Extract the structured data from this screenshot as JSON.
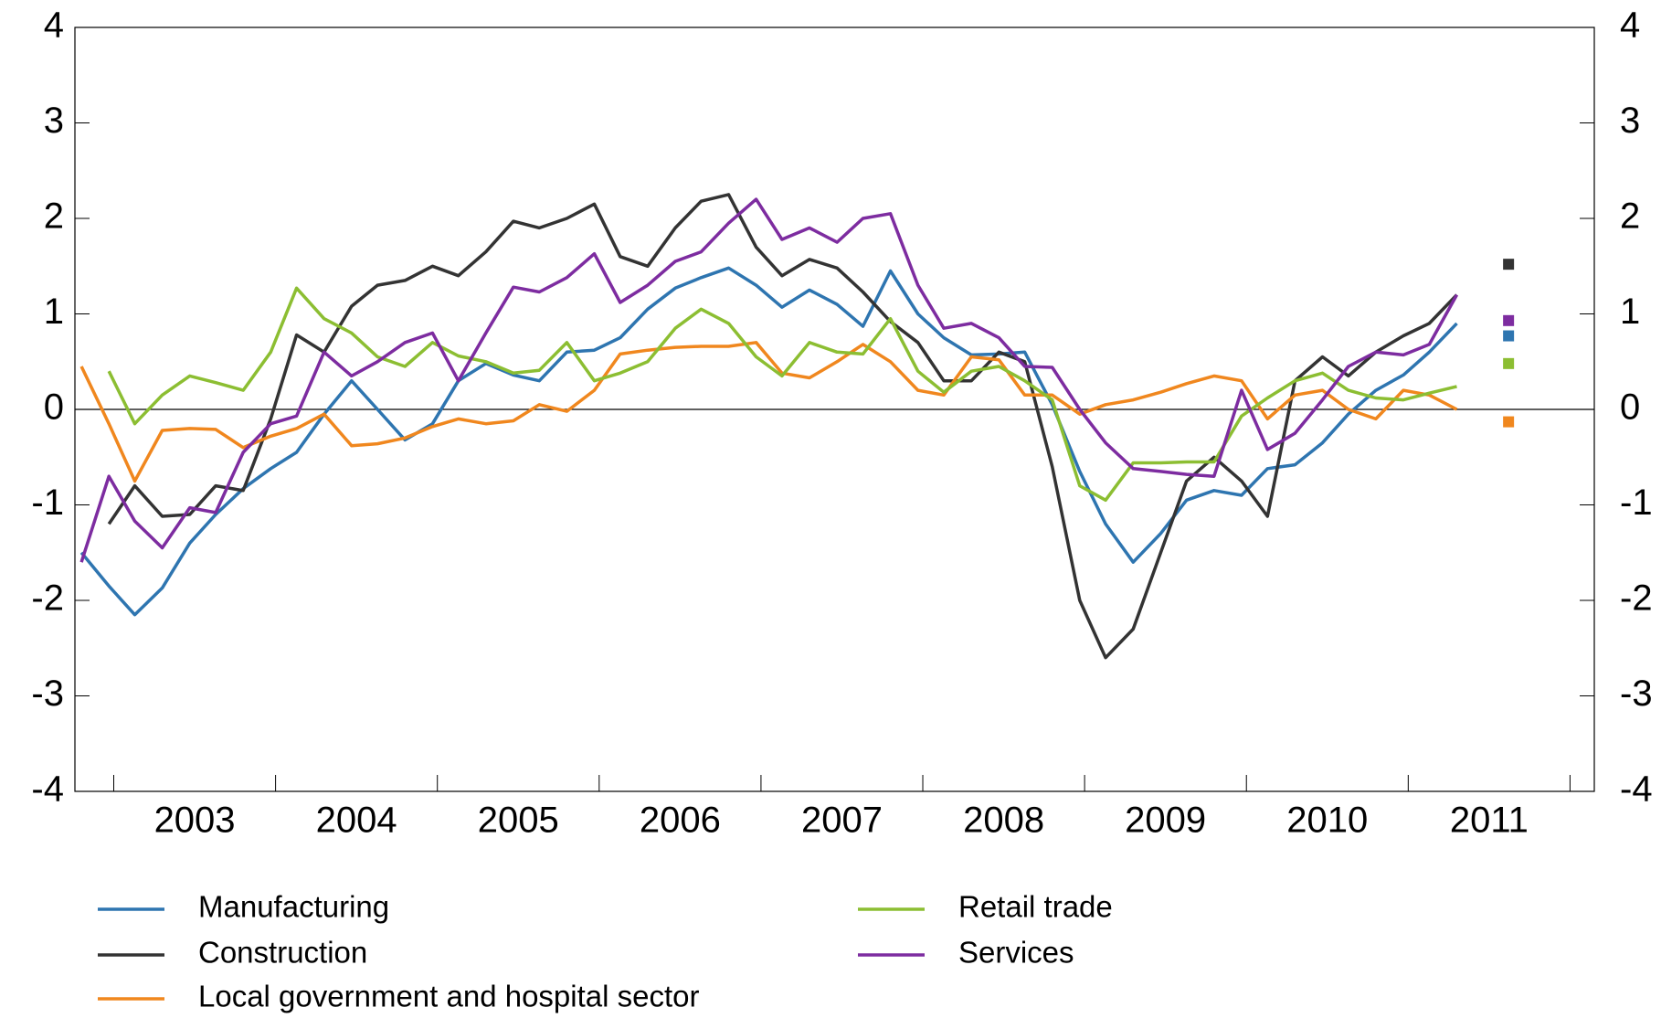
{
  "chart_data": {
    "type": "line",
    "x": [
      2002.8,
      2002.97,
      2003.13,
      2003.3,
      2003.47,
      2003.63,
      2003.8,
      2003.97,
      2004.13,
      2004.3,
      2004.47,
      2004.63,
      2004.8,
      2004.97,
      2005.13,
      2005.3,
      2005.47,
      2005.63,
      2005.8,
      2005.97,
      2006.13,
      2006.3,
      2006.47,
      2006.63,
      2006.8,
      2006.97,
      2007.13,
      2007.3,
      2007.47,
      2007.63,
      2007.8,
      2007.97,
      2008.13,
      2008.3,
      2008.47,
      2008.63,
      2008.8,
      2008.97,
      2009.13,
      2009.3,
      2009.47,
      2009.63,
      2009.8,
      2009.97,
      2010.13,
      2010.3,
      2010.47,
      2010.63,
      2010.8,
      2010.97,
      2011.13,
      2011.3
    ],
    "xlim": [
      2002.76,
      2012.15
    ],
    "xticks": [
      {
        "value": 2003.5,
        "label": "2003"
      },
      {
        "value": 2004.5,
        "label": "2004"
      },
      {
        "value": 2005.5,
        "label": "2005"
      },
      {
        "value": 2006.5,
        "label": "2006"
      },
      {
        "value": 2007.5,
        "label": "2007"
      },
      {
        "value": 2008.5,
        "label": "2008"
      },
      {
        "value": 2009.5,
        "label": "2009"
      },
      {
        "value": 2010.5,
        "label": "2010"
      },
      {
        "value": 2011.5,
        "label": "2011"
      }
    ],
    "ylim": [
      -4,
      4
    ],
    "yticks": [
      -4,
      -3,
      -2,
      -1,
      0,
      1,
      2,
      3,
      4
    ],
    "marker_x": 2011.62,
    "series": [
      {
        "name": "Manufacturing",
        "color": "#2e75b0",
        "marker": 0.77,
        "values": [
          -1.5,
          -1.85,
          -2.15,
          -1.87,
          -1.4,
          -1.1,
          -0.83,
          -0.62,
          -0.45,
          -0.05,
          0.3,
          0.0,
          -0.32,
          -0.15,
          0.3,
          0.48,
          0.36,
          0.3,
          0.6,
          0.62,
          0.75,
          1.05,
          1.27,
          1.38,
          1.48,
          1.3,
          1.07,
          1.25,
          1.1,
          0.87,
          1.45,
          1.0,
          0.75,
          0.57,
          0.58,
          0.6,
          0.05,
          -0.65,
          -1.2,
          -1.6,
          -1.3,
          -0.95,
          -0.85,
          -0.9,
          -0.62,
          -0.58,
          -0.35,
          -0.05,
          0.2,
          0.36,
          0.6,
          0.9
        ]
      },
      {
        "name": "Construction",
        "color": "#333333",
        "marker": 1.52,
        "values": [
          null,
          -1.2,
          -0.8,
          -1.12,
          -1.1,
          -0.8,
          -0.85,
          -0.1,
          0.78,
          0.6,
          1.08,
          1.3,
          1.35,
          1.5,
          1.4,
          1.65,
          1.97,
          1.9,
          2.0,
          2.15,
          1.6,
          1.5,
          1.9,
          2.18,
          2.25,
          1.7,
          1.4,
          1.57,
          1.48,
          1.23,
          0.92,
          0.7,
          0.3,
          0.3,
          0.6,
          0.5,
          -0.6,
          -2.0,
          -2.6,
          -2.3,
          -1.5,
          -0.75,
          -0.5,
          -0.75,
          -1.12,
          0.3,
          0.55,
          0.35,
          0.6,
          0.77,
          0.9,
          1.2
        ]
      },
      {
        "name": "Local government and hospital sector",
        "color": "#f0871e",
        "marker": -0.13,
        "values": [
          0.45,
          -0.15,
          -0.75,
          -0.22,
          -0.2,
          -0.21,
          -0.4,
          -0.28,
          -0.2,
          -0.05,
          -0.38,
          -0.36,
          -0.3,
          -0.18,
          -0.1,
          -0.15,
          -0.12,
          0.05,
          -0.02,
          0.2,
          0.58,
          0.62,
          0.65,
          0.66,
          0.66,
          0.7,
          0.38,
          0.33,
          0.5,
          0.68,
          0.5,
          0.2,
          0.15,
          0.55,
          0.52,
          0.15,
          0.15,
          -0.05,
          0.05,
          0.1,
          0.18,
          0.27,
          0.35,
          0.3,
          -0.1,
          0.15,
          0.2,
          0.0,
          -0.1,
          0.2,
          0.15,
          0.0
        ]
      },
      {
        "name": "Retail trade",
        "color": "#8cbe32",
        "marker": 0.48,
        "values": [
          null,
          0.4,
          -0.15,
          0.15,
          0.35,
          0.28,
          0.2,
          0.6,
          1.27,
          0.95,
          0.8,
          0.55,
          0.45,
          0.7,
          0.56,
          0.5,
          0.38,
          0.41,
          0.7,
          0.3,
          0.38,
          0.5,
          0.85,
          1.05,
          0.9,
          0.55,
          0.35,
          0.7,
          0.6,
          0.58,
          0.95,
          0.4,
          0.18,
          0.4,
          0.45,
          0.3,
          0.1,
          -0.8,
          -0.95,
          -0.56,
          -0.56,
          -0.55,
          -0.55,
          -0.07,
          0.12,
          0.3,
          0.38,
          0.2,
          0.12,
          0.1,
          0.17,
          0.24
        ]
      },
      {
        "name": "Services",
        "color": "#7d2ca0",
        "marker": 0.93,
        "values": [
          -1.6,
          -0.7,
          -1.17,
          -1.45,
          -1.03,
          -1.08,
          -0.45,
          -0.15,
          -0.07,
          0.6,
          0.35,
          0.5,
          0.7,
          0.8,
          0.3,
          0.8,
          1.28,
          1.23,
          1.38,
          1.63,
          1.12,
          1.3,
          1.55,
          1.65,
          1.95,
          2.2,
          1.78,
          1.9,
          1.75,
          2.0,
          2.05,
          1.3,
          0.85,
          0.9,
          0.75,
          0.45,
          0.44,
          0.0,
          -0.35,
          -0.62,
          -0.65,
          -0.68,
          -0.7,
          0.2,
          -0.42,
          -0.25,
          0.1,
          0.45,
          0.6,
          0.57,
          0.68,
          1.2
        ]
      }
    ]
  }
}
